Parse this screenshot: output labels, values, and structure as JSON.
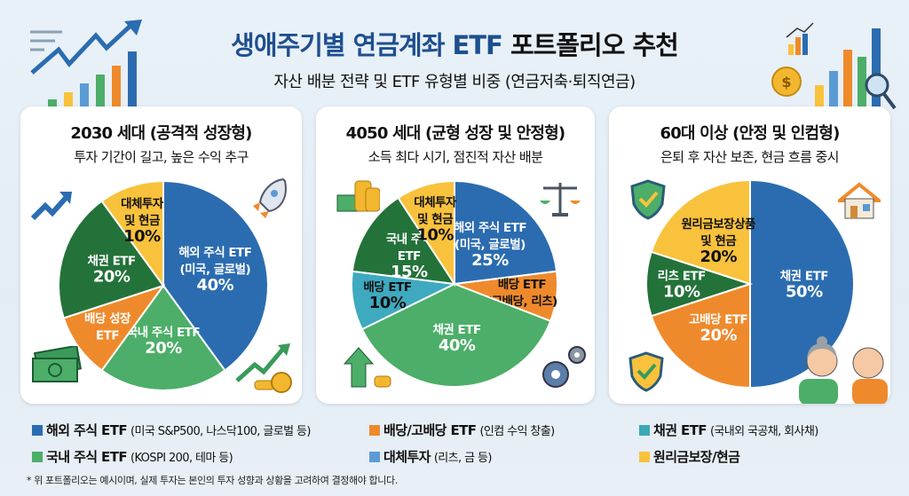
{
  "header": {
    "title_blue": "생애주기별 연금계좌 ETF",
    "title_black": "포트폴리오 추천",
    "subtitle": "자산 배분 전략 및 ETF 유형별 비중 (연금저축·퇴직연금)"
  },
  "chart_data": [
    {
      "type": "pie",
      "title": "2030 세대 (공격적 성장형)",
      "subtitle": "투자 기간이 길고, 높은 수익 추구",
      "start": "12 o'clock",
      "direction": "clockwise",
      "slices": [
        {
          "label": [
            "해외 주식 ETF",
            "(미국, 글로벌)"
          ],
          "value": 40,
          "value_label": "40%",
          "color": "#2b6cb0",
          "text_color": "#ffffff"
        },
        {
          "label": [
            "국내 주식 ETF"
          ],
          "value": 20,
          "value_label": "20%",
          "color": "#4cae68",
          "text_color": "#ffffff"
        },
        {
          "label": [
            "배당 성장",
            "ETF"
          ],
          "value": 10,
          "value_label": "",
          "color": "#ef8a2c",
          "text_color": "#ffffff"
        },
        {
          "label": [
            "채권 ETF"
          ],
          "value": 20,
          "value_label": "20%",
          "color": "#23723a",
          "text_color": "#ffffff"
        },
        {
          "label": [
            "대체투자",
            "및 현금"
          ],
          "value": 10,
          "value_label": "10%",
          "color": "#f9c23c",
          "text_color": "#111111"
        }
      ]
    },
    {
      "type": "pie",
      "title": "4050 세대 (균형 성장 및 안정형)",
      "subtitle": "소득 최다 시기, 점진적 자산 배분",
      "start": "12 o'clock",
      "direction": "clockwise",
      "slices": [
        {
          "label": [
            "해외 주식 ETF",
            "(미국, 글로벌)"
          ],
          "value": 25,
          "value_label": "25%",
          "color": "#2b6cb0",
          "text_color": "#ffffff"
        },
        {
          "label": [
            "배당 ETF",
            "(고배당, 리츠)"
          ],
          "value": null,
          "value_label": "",
          "color": "#ef8a2c",
          "text_color": "#111111"
        },
        {
          "label": [
            "채권 ETF"
          ],
          "value": 40,
          "value_label": "40%",
          "color": "#4cae68",
          "text_color": "#ffffff"
        },
        {
          "label": [
            "배당 ETF"
          ],
          "value": 10,
          "value_label": "10%",
          "color": "#3ea9bf",
          "text_color": "#111111"
        },
        {
          "label": [
            "국내 주식",
            "ETF"
          ],
          "value": 15,
          "value_label": "15%",
          "color": "#23723a",
          "text_color": "#ffffff"
        },
        {
          "label": [
            "대체투자",
            "및 현금"
          ],
          "value": 10,
          "value_label": "10%",
          "color": "#f9c23c",
          "text_color": "#111111"
        }
      ]
    },
    {
      "type": "pie",
      "title": "60대 이상 (안정 및 인컴형)",
      "subtitle": "은퇴 후 자산 보존, 현금 흐름 중시",
      "start": "12 o'clock",
      "direction": "clockwise",
      "slices": [
        {
          "label": [
            "채권 ETF"
          ],
          "value": 50,
          "value_label": "50%",
          "color": "#2b6cb0",
          "text_color": "#ffffff"
        },
        {
          "label": [
            "고배당 ETF"
          ],
          "value": 20,
          "value_label": "20%",
          "color": "#ef8a2c",
          "text_color": "#ffffff"
        },
        {
          "label": [
            "리츠 ETF"
          ],
          "value": 10,
          "value_label": "10%",
          "color": "#23723a",
          "text_color": "#ffffff"
        },
        {
          "label": [
            "원리금보장상품",
            "및 현금"
          ],
          "value": 20,
          "value_label": "20%",
          "color": "#f9c23c",
          "text_color": "#111111"
        }
      ]
    }
  ],
  "legend": [
    {
      "name": "해외 주식 ETF",
      "note": "(미국 S&P500, 나스닥100, 글로벌 등)",
      "color": "#2b6cb0"
    },
    {
      "name": "배당/고배당 ETF",
      "note": "(인컴 수익 창출)",
      "color": "#ef8a2c"
    },
    {
      "name": "채권 ETF",
      "note": "(국내외 국공채, 회사채)",
      "color": "#3aa9b5"
    },
    {
      "name": "국내 주식 ETF",
      "note": "(KOSPI 200, 테마 등)",
      "color": "#4cae68"
    },
    {
      "name": "대체투자",
      "note": "(리츠, 금 등)",
      "color": "#5b9bd5"
    },
    {
      "name": "원리금보장/현금",
      "note": "",
      "color": "#f9c23c"
    }
  ],
  "disclaimer": "* 위 포트폴리오는 예시이며, 실제 투자는 본인의 투자 성향과 상황을 고려하여 결정해야 합니다.",
  "icons": [
    "trend-arrow-bars-icon",
    "bar-chart-coin-magnifier-icon",
    "rocket-icon",
    "money-bill-icon",
    "coins-trend-icon",
    "cash-coins-icon",
    "scale-icon",
    "up-arrow-icon",
    "gears-icon",
    "shield-check-icon",
    "house-icon",
    "senior-couple-icon"
  ]
}
